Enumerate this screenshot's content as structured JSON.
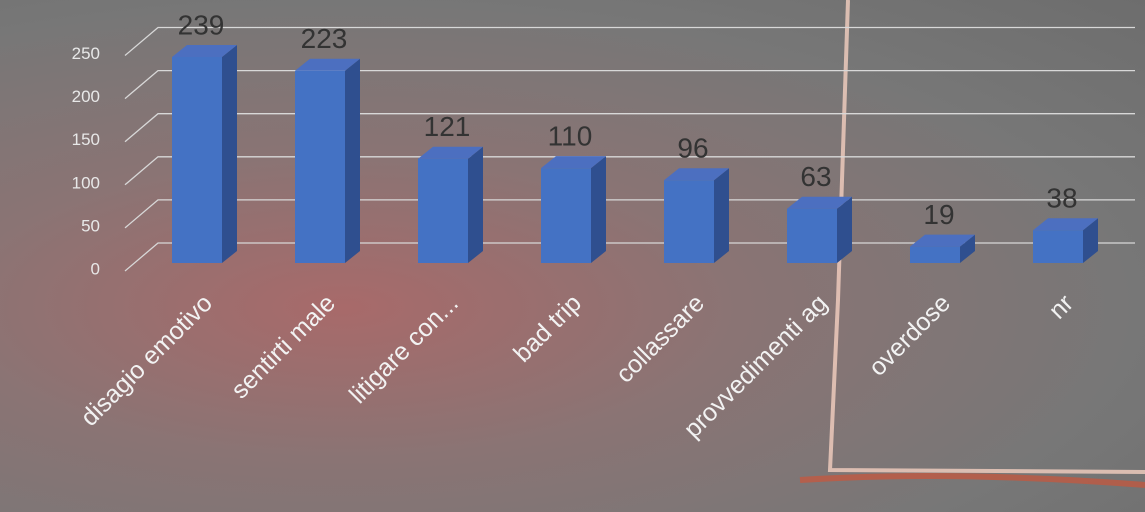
{
  "chart_data": {
    "type": "bar3d",
    "categories": [
      "disagio emotivo",
      "sentirti male",
      "litigare con...",
      "bad trip",
      "collassare",
      "provvedimenti ag",
      "overdose",
      "nr"
    ],
    "values": [
      239,
      223,
      121,
      110,
      96,
      63,
      19,
      38
    ],
    "color": "#4472c4",
    "ylim": [
      0,
      250
    ],
    "yticks": [
      0,
      50,
      100,
      150,
      200,
      250
    ],
    "grid": true
  }
}
